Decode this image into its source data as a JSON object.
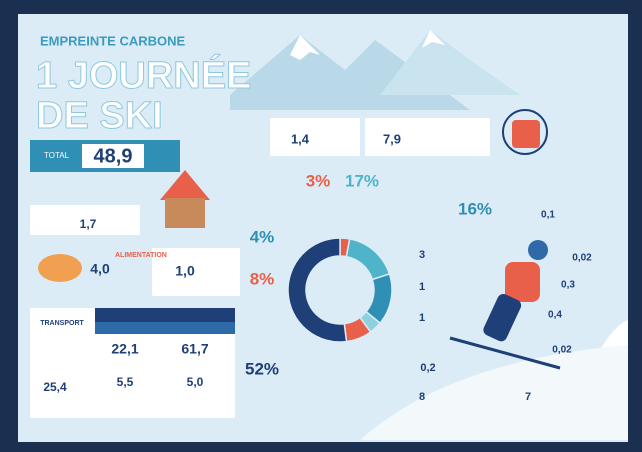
{
  "header": {
    "kicker": "EMPREINTE CARBONE",
    "title_line1": "1 JOURNÉE",
    "title_line2": "DE SKI"
  },
  "total": {
    "label": "TOTAL",
    "value": "48,9"
  },
  "breakdown": {
    "values": [
      3,
      17,
      16,
      4,
      8,
      52
    ],
    "value_labels": [
      "3%",
      "17%",
      "16%",
      "4%",
      "8%",
      "52%"
    ],
    "colors": [
      "#e8604a",
      "#4fb3c9",
      "#2f8fb5",
      "#8fd0df",
      "#e8604a",
      "#1f3f78"
    ]
  },
  "food_label": "ALIMENTATION",
  "transport_label": "TRANSPORT",
  "figures": [
    "1,4",
    "7,9",
    "1,7",
    "4,0",
    "1,0",
    "22,1",
    "61,7",
    "5,5",
    "5,0",
    "25,4",
    "0,1",
    "0,02",
    "3",
    "0,3",
    "1",
    "0,4",
    "1",
    "0,02",
    "0,2",
    "8",
    "7"
  ]
}
